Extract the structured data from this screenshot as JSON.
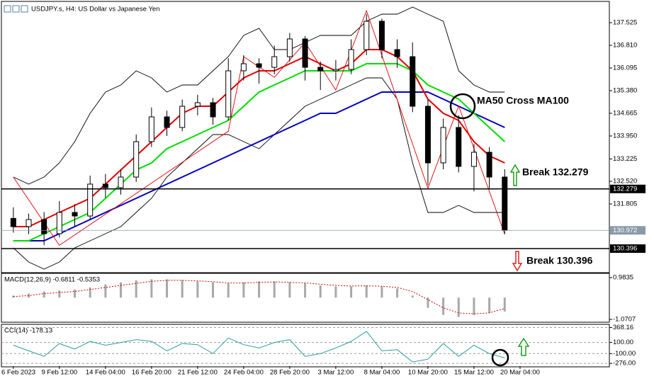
{
  "chart_data": [
    {
      "type": "candlestick",
      "title": "USDJPY.s, H4:  US Dollar vs Japanese Yen",
      "categories": [
        "6 Feb 2023",
        null,
        null,
        "9 Feb 12:00",
        null,
        null,
        "14 Feb 04:00",
        null,
        null,
        "16 Feb 20:00",
        null,
        null,
        "21 Feb 12:00",
        null,
        null,
        "24 Feb 04:00",
        null,
        null,
        "28 Feb 20:00",
        null,
        null,
        "3 Mar 12:00",
        null,
        null,
        "8 Mar 04:00",
        null,
        null,
        "10 Mar 20:00",
        null,
        null,
        "15 Mar 12:00",
        null,
        null,
        "20 Mar 04:00"
      ],
      "open": [
        131.35,
        131.09,
        131.313,
        130.866,
        131.537,
        131.425,
        132.431,
        132.319,
        132.654,
        133.771,
        134.553,
        134.218,
        134.888,
        135.0,
        134.553,
        136.006,
        136.229,
        136.117,
        136.452,
        137.011,
        136.117,
        136.006,
        136.05,
        136.676,
        137.57,
        136.676,
        136.452,
        134.888,
        133.101,
        134.218,
        132.989,
        133.436,
        132.654,
        null
      ],
      "high": [
        131.7,
        131.5,
        131.55,
        131.9,
        131.8,
        132.7,
        132.75,
        132.9,
        134.0,
        134.85,
        134.75,
        135.1,
        135.25,
        135.15,
        136.4,
        136.5,
        136.4,
        136.8,
        137.2,
        137.1,
        136.3,
        136.35,
        137.0,
        137.8,
        137.65,
        137.0,
        136.9,
        135.1,
        134.5,
        134.6,
        133.7,
        133.6,
        132.9,
        null
      ],
      "low": [
        130.9,
        130.85,
        130.5,
        130.75,
        131.1,
        131.3,
        132.0,
        132.1,
        132.5,
        133.6,
        133.95,
        134.1,
        134.6,
        134.3,
        134.45,
        135.7,
        135.6,
        135.9,
        136.3,
        135.7,
        135.4,
        135.7,
        135.9,
        136.5,
        136.4,
        136.1,
        134.7,
        132.4,
        132.9,
        132.8,
        132.2,
        132.3,
        130.85,
        null
      ],
      "close": [
        131.09,
        131.313,
        130.866,
        131.537,
        131.425,
        132.431,
        132.319,
        132.654,
        133.771,
        134.553,
        134.218,
        134.888,
        135.0,
        134.553,
        136.006,
        136.229,
        136.117,
        136.452,
        137.011,
        136.117,
        136.006,
        136.05,
        136.676,
        137.57,
        136.676,
        136.452,
        134.888,
        133.101,
        134.218,
        132.989,
        133.436,
        132.654,
        130.972,
        null
      ],
      "candle_color": "#000000",
      "series": [
        {
          "color": "#000000",
          "values": [
            132.654,
            132.431,
            132.654,
            133.101,
            133.771,
            134.665,
            135.335,
            135.559,
            136.006,
            135.782,
            135.335,
            135.559,
            135.559,
            136.006,
            136.452,
            137.123,
            137.346,
            136.676,
            136.676,
            136.899,
            137.123,
            137.123,
            137.123,
            137.57,
            137.793,
            137.793,
            138.017,
            137.793,
            137.57,
            136.006,
            135.559,
            135.335,
            135.335,
            null
          ]
        },
        {
          "color": "#000000",
          "values": [
            130.419,
            129.972,
            129.749,
            129.972,
            130.419,
            130.643,
            130.866,
            131.09,
            131.537,
            131.984,
            132.654,
            133.101,
            133.548,
            133.995,
            133.995,
            133.771,
            133.548,
            133.995,
            134.441,
            134.888,
            135.112,
            135.335,
            135.559,
            135.782,
            135.782,
            135.112,
            133.101,
            131.537,
            131.537,
            131.76,
            131.537,
            131.537,
            131.537,
            null
          ]
        },
        {
          "color": "#0000c0",
          "values": [
            130.643,
            130.643,
            130.643,
            130.866,
            131.09,
            131.313,
            131.537,
            131.76,
            131.984,
            132.207,
            132.431,
            132.654,
            132.878,
            133.101,
            133.324,
            133.548,
            133.771,
            133.995,
            134.218,
            134.441,
            134.665,
            134.665,
            134.888,
            135.112,
            135.335,
            135.335,
            135.335,
            135.335,
            135.112,
            134.888,
            134.665,
            134.441,
            134.218,
            null
          ]
        },
        {
          "color": "#00dd00",
          "values": [
            130.643,
            130.643,
            130.866,
            131.09,
            131.313,
            131.537,
            131.984,
            132.431,
            132.878,
            133.101,
            133.548,
            133.771,
            133.995,
            134.218,
            134.441,
            134.888,
            135.335,
            135.559,
            135.782,
            136.006,
            136.006,
            136.006,
            136.006,
            136.229,
            136.229,
            136.229,
            136.006,
            135.559,
            135.335,
            135.112,
            134.665,
            134.218,
            133.771,
            null
          ]
        },
        {
          "color": "#e00000",
          "values": [
            131.09,
            131.09,
            131.313,
            131.537,
            131.76,
            131.984,
            132.431,
            132.878,
            133.324,
            133.771,
            134.218,
            134.665,
            134.888,
            134.888,
            135.335,
            135.782,
            136.006,
            136.006,
            136.229,
            136.452,
            136.229,
            136.006,
            136.229,
            136.676,
            136.676,
            136.452,
            136.006,
            135.112,
            134.665,
            134.441,
            133.771,
            133.324,
            133.101,
            null
          ]
        }
      ],
      "zigzag": {
        "color": "#e00000",
        "x": [
          0,
          3,
          14,
          15,
          17,
          19,
          21,
          23,
          27,
          29,
          32
        ],
        "values": [
          132.654,
          130.5,
          134.1,
          136.452,
          135.8,
          136.9,
          135.4,
          137.9,
          132.3,
          134.9,
          130.85
        ]
      },
      "hlines": [
        {
          "value": 132.279,
          "color": "#000000"
        },
        {
          "value": 130.972,
          "color": "#8a9aa8"
        },
        {
          "value": 130.396,
          "color": "#000000"
        }
      ],
      "ylim": [
        129.66,
        138.173
      ],
      "yticks": [
        137.525,
        {
          "value": 136.81,
          "label": "136.810"
        },
        136.095,
        {
          "value": 135.38,
          "label": "135.380"
        },
        134.665,
        {
          "value": 133.95,
          "label": "133.950"
        },
        133.225,
        {
          "value": 132.52,
          "label": "132.520"
        },
        131.805
      ],
      "annotations": [
        "MA50 Cross MA100",
        "Break 132.279",
        "Break 130.396"
      ]
    },
    {
      "type": "macd",
      "title": "MACD(12,26,9) -0.6811 -0.5353",
      "values": [
        0.1,
        0.2,
        0.3,
        0.35,
        0.4,
        0.5,
        0.65,
        0.75,
        0.85,
        0.9,
        0.9,
        0.85,
        0.8,
        0.75,
        0.7,
        0.75,
        0.8,
        0.8,
        0.75,
        0.7,
        0.6,
        0.55,
        0.55,
        0.6,
        0.55,
        0.45,
        0.1,
        -0.5,
        -0.85,
        -0.95,
        -0.85,
        -0.75,
        -0.6811,
        null
      ],
      "signal": [
        0.05,
        0.1,
        0.2,
        0.25,
        0.3,
        0.4,
        0.5,
        0.6,
        0.7,
        0.8,
        0.85,
        0.85,
        0.82,
        0.78,
        0.72,
        0.72,
        0.75,
        0.77,
        0.75,
        0.72,
        0.66,
        0.6,
        0.57,
        0.58,
        0.56,
        0.5,
        0.3,
        -0.1,
        -0.5,
        -0.75,
        -0.8,
        -0.75,
        -0.5353,
        null
      ],
      "color": "#a8a8a8",
      "signal_color": "#d00000",
      "ylim": [
        -1.21,
        1.192
      ],
      "yticks": [
        0.9835,
        -1.0707
      ]
    },
    {
      "type": "line",
      "title": "CCI(14) -178.13",
      "values": [
        50,
        -50,
        -150,
        80,
        -20,
        120,
        50,
        100,
        150,
        120,
        -50,
        80,
        60,
        -100,
        180,
        60,
        0,
        100,
        150,
        -150,
        -100,
        0,
        120,
        300,
        -50,
        -30,
        -250,
        -200,
        80,
        -150,
        50,
        -100,
        -178.13,
        null
      ],
      "color": "#2a9d9d",
      "ylim": [
        -325,
        425
      ],
      "yticks": [
        368.16,
        {
          "value": 100,
          "label": "100.00"
        },
        {
          "value": -100,
          "label": "-100.00"
        },
        {
          "value": -276,
          "label": "-276.00"
        }
      ],
      "grid": true
    }
  ]
}
